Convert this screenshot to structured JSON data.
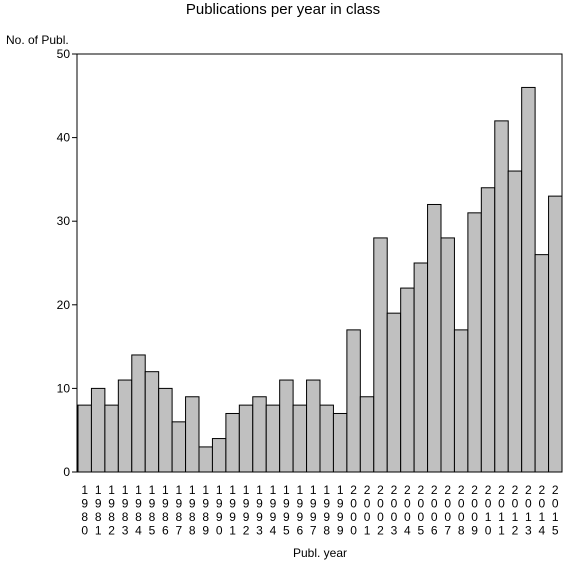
{
  "chart_data": {
    "type": "bar",
    "title": "Publications per year in class",
    "xlabel": "Publ. year",
    "ylabel": "No. of Publ.",
    "ylim": [
      0,
      50
    ],
    "yticks": [
      0,
      10,
      20,
      30,
      40,
      50
    ],
    "grid": false,
    "categories": [
      "1980",
      "1981",
      "1982",
      "1983",
      "1984",
      "1985",
      "1986",
      "1987",
      "1988",
      "1989",
      "1990",
      "1991",
      "1992",
      "1993",
      "1994",
      "1995",
      "1996",
      "1997",
      "1998",
      "1999",
      "2000",
      "2001",
      "2002",
      "2003",
      "2004",
      "2005",
      "2006",
      "2007",
      "2008",
      "2009",
      "2010",
      "2011",
      "2012",
      "2013",
      "2014",
      "2015"
    ],
    "values": [
      8,
      10,
      8,
      11,
      14,
      12,
      10,
      6,
      9,
      3,
      4,
      7,
      8,
      9,
      8,
      11,
      8,
      11,
      8,
      7,
      17,
      9,
      28,
      19,
      22,
      25,
      32,
      28,
      17,
      31,
      34,
      42,
      36,
      46,
      26,
      33
    ],
    "bar_color": "#c0c0c0",
    "bar_edge_color": "#000000"
  }
}
